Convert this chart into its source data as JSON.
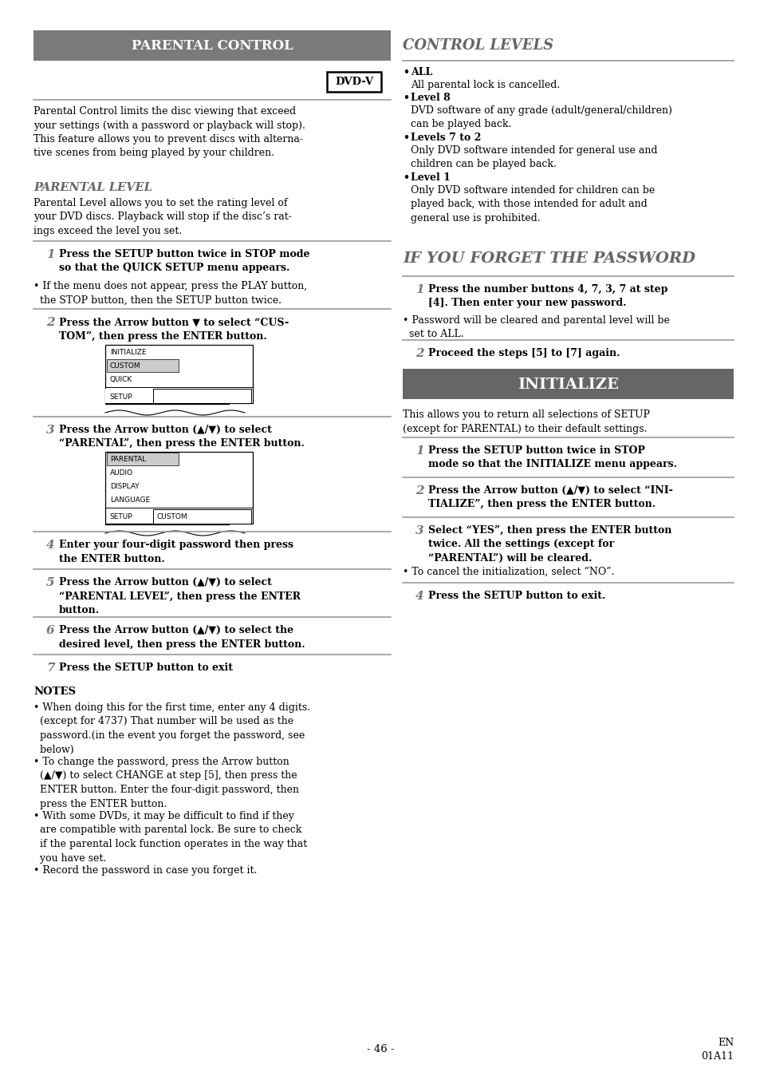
{
  "page_bg": "#ffffff",
  "header_bg": "#7a7a7a",
  "header_text_color": "#ffffff",
  "initialize_bg": "#666666",
  "divider_color": "#999999",
  "italic_section_color": "#666666",
  "step_num_color": "#777777",
  "body_color": "#000000",
  "page_number": "- 46 -",
  "page_code_1": "EN",
  "page_code_2": "01A11"
}
